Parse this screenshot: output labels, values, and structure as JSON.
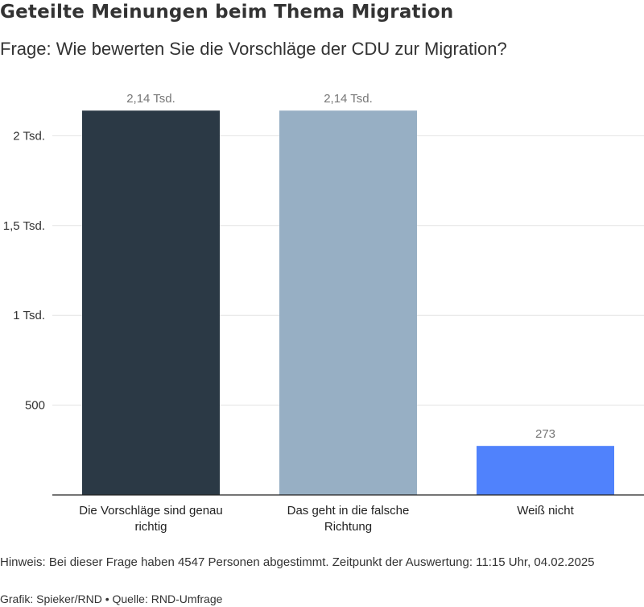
{
  "title": "Geteilte Meinungen beim Thema Migration",
  "subtitle": "Frage: Wie bewerten Sie die Vorschläge der CDU zur Migration?",
  "note": "Hinweis: Bei dieser Frage haben 4547 Personen abgestimmt. Zeitpunkt der Auswertung: 11:15 Uhr, 04.02.2025",
  "credit": "Grafik: Spieker/RND • Quelle: RND-Umfrage",
  "chart_data": {
    "type": "bar",
    "title": "Geteilte Meinungen beim Thema Migration",
    "xlabel": "",
    "ylabel": "",
    "ylim": [
      0,
      2280
    ],
    "grid": true,
    "yticks": [
      500,
      1000,
      1500,
      2000
    ],
    "ytick_labels": [
      "500",
      "1 Tsd.",
      "1,5 Tsd.",
      "2 Tsd."
    ],
    "categories": [
      [
        "Die Vorschläge sind genau",
        "richtig"
      ],
      [
        "Das geht in die falsche",
        "Richtung"
      ],
      [
        "Weiß nicht"
      ]
    ],
    "values": [
      2140,
      2140,
      273
    ],
    "value_labels": [
      "2,14 Tsd.",
      "2,14 Tsd.",
      "273"
    ],
    "colors": [
      "#2b3945",
      "#97afc4",
      "#5082fc"
    ]
  }
}
